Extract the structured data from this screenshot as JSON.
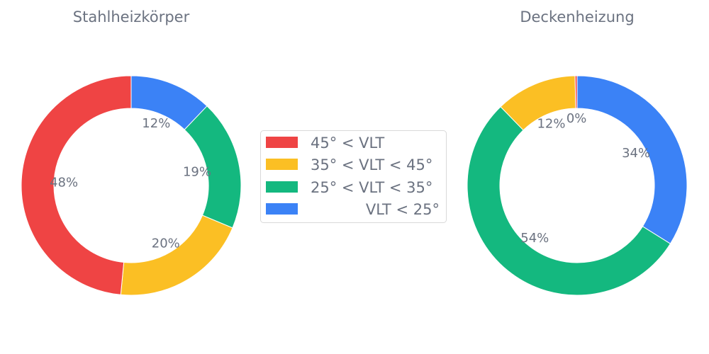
{
  "chart_data": [
    {
      "type": "pie",
      "donut": true,
      "title": "Stahlheizkörper",
      "categories": [
        "VLT < 25°",
        "25° < VLT < 35°",
        "35° < VLT < 45°",
        "45° < VLT"
      ],
      "values": [
        12,
        19,
        20,
        48
      ],
      "labels": [
        "12%",
        "19%",
        "20%",
        "48%"
      ],
      "start": "top, clockwise"
    },
    {
      "type": "pie",
      "donut": true,
      "title": "Deckenheizung",
      "categories": [
        "VLT < 25°",
        "25° < VLT < 35°",
        "35° < VLT < 45°",
        "45° < VLT"
      ],
      "values": [
        34,
        54,
        12,
        0.3
      ],
      "labels": [
        "34%",
        "54%",
        "12%",
        "0%"
      ],
      "start": "top, clockwise"
    }
  ],
  "legend": {
    "placement": "center",
    "entries": [
      {
        "label": "45° < VLT",
        "color": "#ef4444"
      },
      {
        "label": "35° < VLT < 45°",
        "color": "#fbbf24"
      },
      {
        "label": "25° < VLT < 35°",
        "color": "#14b87f"
      },
      {
        "label": "VLT < 25°",
        "color": "#3b82f6"
      }
    ]
  },
  "colors": {
    "VLT < 25°": "#3b82f6",
    "25° < VLT < 35°": "#14b87f",
    "35° < VLT < 45°": "#fbbf24",
    "45° < VLT": "#ef4444"
  }
}
